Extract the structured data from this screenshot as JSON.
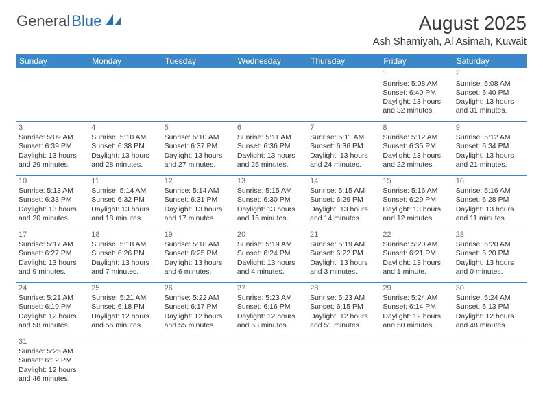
{
  "logo": {
    "part1": "General",
    "part2": "Blue"
  },
  "title": "August 2025",
  "location": "Ash Shamiyah, Al Asimah, Kuwait",
  "colors": {
    "header_bg": "#3b87c8",
    "header_fg": "#ffffff",
    "border": "#3b87c8",
    "text": "#333333",
    "logo_gray": "#4d4d4d",
    "logo_blue": "#2c6fb3"
  },
  "weekdays": [
    "Sunday",
    "Monday",
    "Tuesday",
    "Wednesday",
    "Thursday",
    "Friday",
    "Saturday"
  ],
  "weeks": [
    [
      null,
      null,
      null,
      null,
      null,
      {
        "n": "1",
        "sr": "Sunrise: 5:08 AM",
        "ss": "Sunset: 6:40 PM",
        "dl": "Daylight: 13 hours and 32 minutes."
      },
      {
        "n": "2",
        "sr": "Sunrise: 5:08 AM",
        "ss": "Sunset: 6:40 PM",
        "dl": "Daylight: 13 hours and 31 minutes."
      }
    ],
    [
      {
        "n": "3",
        "sr": "Sunrise: 5:09 AM",
        "ss": "Sunset: 6:39 PM",
        "dl": "Daylight: 13 hours and 29 minutes."
      },
      {
        "n": "4",
        "sr": "Sunrise: 5:10 AM",
        "ss": "Sunset: 6:38 PM",
        "dl": "Daylight: 13 hours and 28 minutes."
      },
      {
        "n": "5",
        "sr": "Sunrise: 5:10 AM",
        "ss": "Sunset: 6:37 PM",
        "dl": "Daylight: 13 hours and 27 minutes."
      },
      {
        "n": "6",
        "sr": "Sunrise: 5:11 AM",
        "ss": "Sunset: 6:36 PM",
        "dl": "Daylight: 13 hours and 25 minutes."
      },
      {
        "n": "7",
        "sr": "Sunrise: 5:11 AM",
        "ss": "Sunset: 6:36 PM",
        "dl": "Daylight: 13 hours and 24 minutes."
      },
      {
        "n": "8",
        "sr": "Sunrise: 5:12 AM",
        "ss": "Sunset: 6:35 PM",
        "dl": "Daylight: 13 hours and 22 minutes."
      },
      {
        "n": "9",
        "sr": "Sunrise: 5:12 AM",
        "ss": "Sunset: 6:34 PM",
        "dl": "Daylight: 13 hours and 21 minutes."
      }
    ],
    [
      {
        "n": "10",
        "sr": "Sunrise: 5:13 AM",
        "ss": "Sunset: 6:33 PM",
        "dl": "Daylight: 13 hours and 20 minutes."
      },
      {
        "n": "11",
        "sr": "Sunrise: 5:14 AM",
        "ss": "Sunset: 6:32 PM",
        "dl": "Daylight: 13 hours and 18 minutes."
      },
      {
        "n": "12",
        "sr": "Sunrise: 5:14 AM",
        "ss": "Sunset: 6:31 PM",
        "dl": "Daylight: 13 hours and 17 minutes."
      },
      {
        "n": "13",
        "sr": "Sunrise: 5:15 AM",
        "ss": "Sunset: 6:30 PM",
        "dl": "Daylight: 13 hours and 15 minutes."
      },
      {
        "n": "14",
        "sr": "Sunrise: 5:15 AM",
        "ss": "Sunset: 6:29 PM",
        "dl": "Daylight: 13 hours and 14 minutes."
      },
      {
        "n": "15",
        "sr": "Sunrise: 5:16 AM",
        "ss": "Sunset: 6:29 PM",
        "dl": "Daylight: 13 hours and 12 minutes."
      },
      {
        "n": "16",
        "sr": "Sunrise: 5:16 AM",
        "ss": "Sunset: 6:28 PM",
        "dl": "Daylight: 13 hours and 11 minutes."
      }
    ],
    [
      {
        "n": "17",
        "sr": "Sunrise: 5:17 AM",
        "ss": "Sunset: 6:27 PM",
        "dl": "Daylight: 13 hours and 9 minutes."
      },
      {
        "n": "18",
        "sr": "Sunrise: 5:18 AM",
        "ss": "Sunset: 6:26 PM",
        "dl": "Daylight: 13 hours and 7 minutes."
      },
      {
        "n": "19",
        "sr": "Sunrise: 5:18 AM",
        "ss": "Sunset: 6:25 PM",
        "dl": "Daylight: 13 hours and 6 minutes."
      },
      {
        "n": "20",
        "sr": "Sunrise: 5:19 AM",
        "ss": "Sunset: 6:24 PM",
        "dl": "Daylight: 13 hours and 4 minutes."
      },
      {
        "n": "21",
        "sr": "Sunrise: 5:19 AM",
        "ss": "Sunset: 6:22 PM",
        "dl": "Daylight: 13 hours and 3 minutes."
      },
      {
        "n": "22",
        "sr": "Sunrise: 5:20 AM",
        "ss": "Sunset: 6:21 PM",
        "dl": "Daylight: 13 hours and 1 minute."
      },
      {
        "n": "23",
        "sr": "Sunrise: 5:20 AM",
        "ss": "Sunset: 6:20 PM",
        "dl": "Daylight: 13 hours and 0 minutes."
      }
    ],
    [
      {
        "n": "24",
        "sr": "Sunrise: 5:21 AM",
        "ss": "Sunset: 6:19 PM",
        "dl": "Daylight: 12 hours and 58 minutes."
      },
      {
        "n": "25",
        "sr": "Sunrise: 5:21 AM",
        "ss": "Sunset: 6:18 PM",
        "dl": "Daylight: 12 hours and 56 minutes."
      },
      {
        "n": "26",
        "sr": "Sunrise: 5:22 AM",
        "ss": "Sunset: 6:17 PM",
        "dl": "Daylight: 12 hours and 55 minutes."
      },
      {
        "n": "27",
        "sr": "Sunrise: 5:23 AM",
        "ss": "Sunset: 6:16 PM",
        "dl": "Daylight: 12 hours and 53 minutes."
      },
      {
        "n": "28",
        "sr": "Sunrise: 5:23 AM",
        "ss": "Sunset: 6:15 PM",
        "dl": "Daylight: 12 hours and 51 minutes."
      },
      {
        "n": "29",
        "sr": "Sunrise: 5:24 AM",
        "ss": "Sunset: 6:14 PM",
        "dl": "Daylight: 12 hours and 50 minutes."
      },
      {
        "n": "30",
        "sr": "Sunrise: 5:24 AM",
        "ss": "Sunset: 6:13 PM",
        "dl": "Daylight: 12 hours and 48 minutes."
      }
    ],
    [
      {
        "n": "31",
        "sr": "Sunrise: 5:25 AM",
        "ss": "Sunset: 6:12 PM",
        "dl": "Daylight: 12 hours and 46 minutes."
      },
      null,
      null,
      null,
      null,
      null,
      null
    ]
  ]
}
